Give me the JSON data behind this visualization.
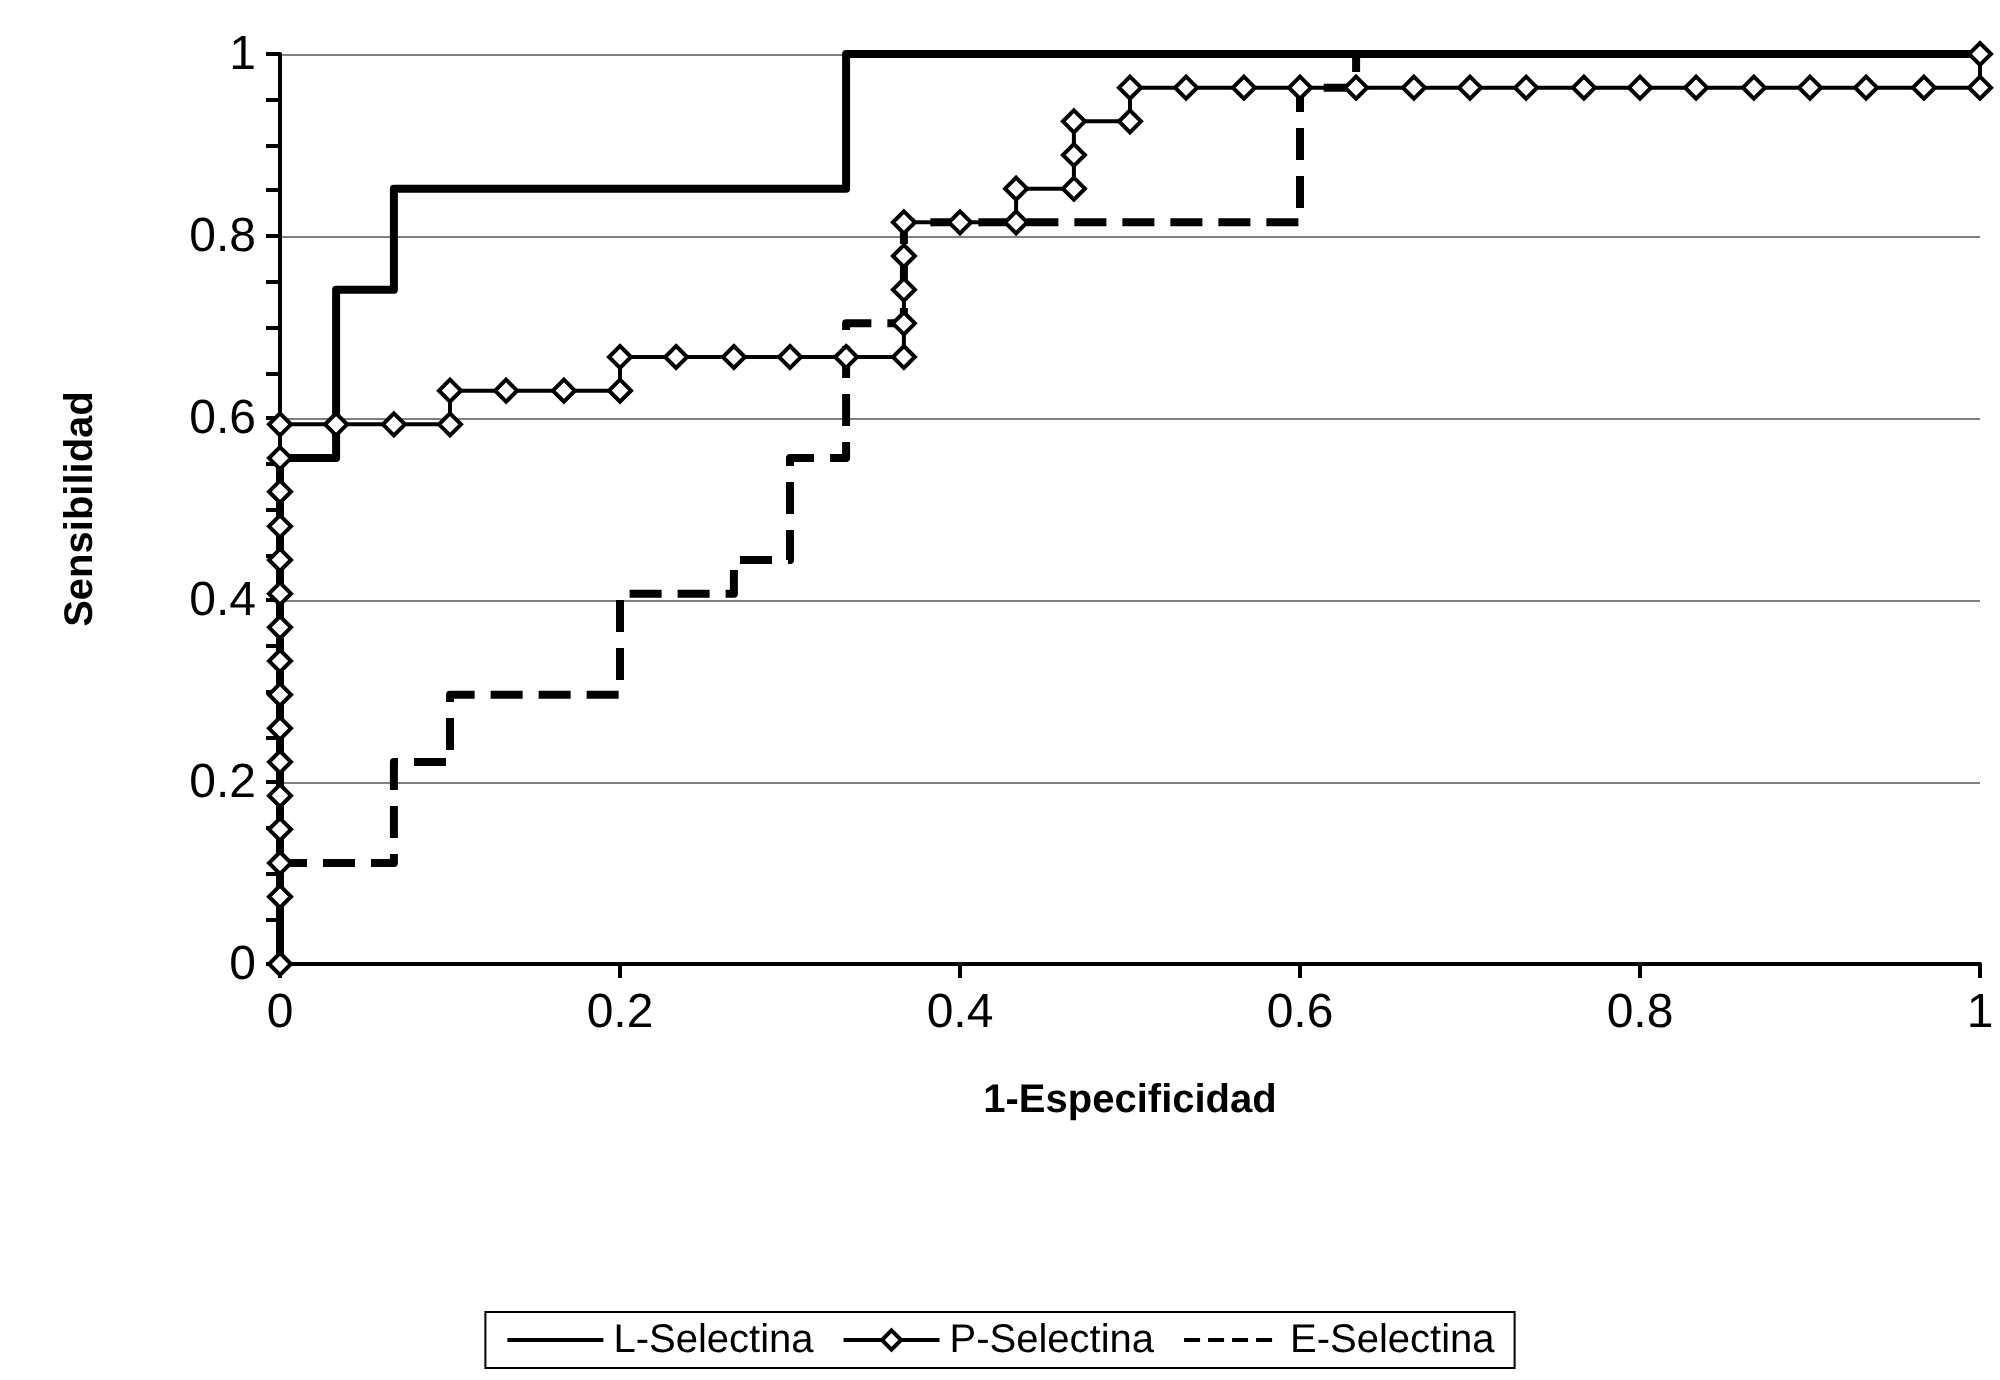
{
  "chart_data": {
    "type": "line",
    "xlabel": "1-Especificidad",
    "ylabel": "Sensibilidad",
    "xlim": [
      0,
      1
    ],
    "xticks": [
      0,
      0.2,
      0.4,
      0.6,
      0.8,
      1
    ],
    "ylim": [
      0,
      1
    ],
    "yticks": [
      0,
      0.2,
      0.4,
      0.6,
      0.8,
      1
    ],
    "grid": "y",
    "legend": "bottom",
    "series": [
      {
        "name": "L-Selectina",
        "color": "#000000",
        "marker": "none",
        "line_style": "solid",
        "x": [
          0,
          0,
          0.033,
          0.033,
          0.067,
          0.067,
          0.333,
          0.333,
          1
        ],
        "values": [
          0,
          0.556,
          0.556,
          0.741,
          0.741,
          0.852,
          0.852,
          1,
          1
        ]
      },
      {
        "name": "P-Selectina",
        "color": "#000000",
        "marker": "diamond",
        "line_style": "solid",
        "x": [
          0,
          0,
          0,
          0,
          0,
          0,
          0,
          0,
          0,
          0,
          0,
          0,
          0,
          0,
          0,
          0,
          0.033,
          0.067,
          0.1,
          0.1,
          0.133,
          0.167,
          0.2,
          0.2,
          0.233,
          0.267,
          0.3,
          0.333,
          0.367,
          0.367,
          0.367,
          0.367,
          0.367,
          0.4,
          0.433,
          0.433,
          0.467,
          0.467,
          0.467,
          0.5,
          0.5,
          0.533,
          0.567,
          0.6,
          0.633,
          0.667,
          0.7,
          0.733,
          0.767,
          0.8,
          0.833,
          0.867,
          0.9,
          0.933,
          0.967,
          1,
          1
        ],
        "values": [
          0,
          0.074,
          0.111,
          0.148,
          0.185,
          0.222,
          0.259,
          0.296,
          0.333,
          0.37,
          0.407,
          0.444,
          0.481,
          0.519,
          0.556,
          0.593,
          0.593,
          0.593,
          0.593,
          0.63,
          0.63,
          0.63,
          0.63,
          0.667,
          0.667,
          0.667,
          0.667,
          0.667,
          0.667,
          0.704,
          0.741,
          0.778,
          0.815,
          0.815,
          0.815,
          0.852,
          0.852,
          0.889,
          0.926,
          0.926,
          0.963,
          0.963,
          0.963,
          0.963,
          0.963,
          0.963,
          0.963,
          0.963,
          0.963,
          0.963,
          0.963,
          0.963,
          0.963,
          0.963,
          0.963,
          0.963,
          1
        ]
      },
      {
        "name": "E-Selectina",
        "color": "#000000",
        "marker": "none",
        "line_style": "dashed",
        "x": [
          0,
          0,
          0.067,
          0.067,
          0.1,
          0.1,
          0.2,
          0.2,
          0.267,
          0.267,
          0.3,
          0.3,
          0.333,
          0.333,
          0.367,
          0.367,
          0.6,
          0.6,
          0.633,
          0.633,
          1
        ],
        "values": [
          0,
          0.111,
          0.111,
          0.222,
          0.222,
          0.296,
          0.296,
          0.407,
          0.407,
          0.444,
          0.444,
          0.556,
          0.556,
          0.704,
          0.704,
          0.815,
          0.815,
          0.963,
          0.963,
          1,
          1
        ]
      }
    ]
  }
}
